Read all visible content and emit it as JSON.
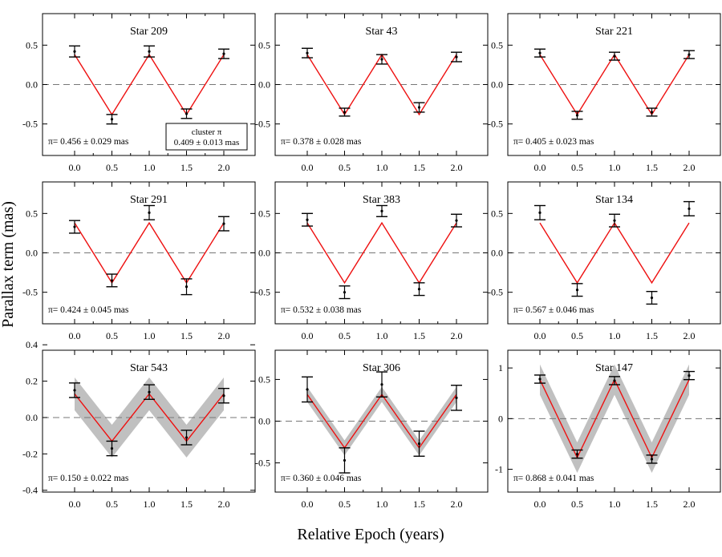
{
  "figure": {
    "ylabel": "Parallax term (mas)",
    "xlabel": "Relative Epoch (years)",
    "xticks": [
      "0.0",
      "0.5",
      "1.0",
      "1.5",
      "2.0"
    ]
  },
  "colors": {
    "model": "#ee1111",
    "band": "#c0c0c0",
    "zero_line": "#777777",
    "axes": "#000000"
  },
  "chart_data": [
    {
      "type": "scatter",
      "title": "Star 209",
      "ylim": [
        -0.9,
        0.9
      ],
      "yticks": [
        "0.5",
        "0.0",
        "-0.5"
      ],
      "ytick_values": [
        0.5,
        0,
        -0.5
      ],
      "amplitude": 0.38,
      "band_halfwidth": 0,
      "parallax_label": "π= 0.456 ±  0.029 mas",
      "cluster_label": [
        "cluster π",
        "0.409 ± 0.013 mas"
      ],
      "points": [
        {
          "x": 0,
          "y": 0.42,
          "err": 0.07
        },
        {
          "x": 0.5,
          "y": -0.44,
          "err": 0.06
        },
        {
          "x": 1,
          "y": 0.42,
          "err": 0.07
        },
        {
          "x": 1.5,
          "y": -0.37,
          "err": 0.06
        },
        {
          "x": 2,
          "y": 0.39,
          "err": 0.06
        }
      ]
    },
    {
      "type": "scatter",
      "title": "Star 43",
      "ylim": [
        -0.9,
        0.9
      ],
      "yticks": [
        "0.5",
        "0.0",
        "-0.5"
      ],
      "ytick_values": [
        0.5,
        0,
        -0.5
      ],
      "amplitude": 0.38,
      "band_halfwidth": 0,
      "parallax_label": "π= 0.378 ±  0.028 mas",
      "points": [
        {
          "x": 0,
          "y": 0.4,
          "err": 0.06
        },
        {
          "x": 0.5,
          "y": -0.35,
          "err": 0.05
        },
        {
          "x": 1,
          "y": 0.32,
          "err": 0.06
        },
        {
          "x": 1.5,
          "y": -0.29,
          "err": 0.06
        },
        {
          "x": 2,
          "y": 0.35,
          "err": 0.06
        }
      ]
    },
    {
      "type": "scatter",
      "title": "Star 221",
      "ylim": [
        -0.9,
        0.9
      ],
      "yticks": [
        "0.5",
        "0.0",
        "-0.5"
      ],
      "ytick_values": [
        0.5,
        0,
        -0.5
      ],
      "amplitude": 0.38,
      "band_halfwidth": 0,
      "parallax_label": "π= 0.405 ±  0.023 mas",
      "points": [
        {
          "x": 0,
          "y": 0.4,
          "err": 0.05
        },
        {
          "x": 0.5,
          "y": -0.39,
          "err": 0.05
        },
        {
          "x": 1,
          "y": 0.36,
          "err": 0.05
        },
        {
          "x": 1.5,
          "y": -0.35,
          "err": 0.05
        },
        {
          "x": 2,
          "y": 0.38,
          "err": 0.05
        }
      ]
    },
    {
      "type": "scatter",
      "title": "Star 291",
      "ylim": [
        -0.9,
        0.9
      ],
      "yticks": [
        "0.5",
        "0.0",
        "-0.5"
      ],
      "ytick_values": [
        0.5,
        0,
        -0.5
      ],
      "amplitude": 0.38,
      "band_halfwidth": 0,
      "parallax_label": "π= 0.424 ±  0.045 mas",
      "points": [
        {
          "x": 0,
          "y": 0.33,
          "err": 0.08
        },
        {
          "x": 0.5,
          "y": -0.35,
          "err": 0.08
        },
        {
          "x": 1,
          "y": 0.51,
          "err": 0.09
        },
        {
          "x": 1.5,
          "y": -0.43,
          "err": 0.1
        },
        {
          "x": 2,
          "y": 0.37,
          "err": 0.09
        }
      ]
    },
    {
      "type": "scatter",
      "title": "Star 383",
      "ylim": [
        -0.9,
        0.9
      ],
      "yticks": [
        "0.5",
        "0.0",
        "-0.5"
      ],
      "ytick_values": [
        0.5,
        0,
        -0.5
      ],
      "amplitude": 0.38,
      "band_halfwidth": 0,
      "parallax_label": "π= 0.532 ±  0.038 mas",
      "points": [
        {
          "x": 0,
          "y": 0.42,
          "err": 0.08
        },
        {
          "x": 0.5,
          "y": -0.5,
          "err": 0.08
        },
        {
          "x": 1,
          "y": 0.53,
          "err": 0.07
        },
        {
          "x": 1.5,
          "y": -0.46,
          "err": 0.08
        },
        {
          "x": 2,
          "y": 0.41,
          "err": 0.08
        }
      ]
    },
    {
      "type": "scatter",
      "title": "Star 134",
      "ylim": [
        -0.9,
        0.9
      ],
      "yticks": [
        "0.5",
        "0.0",
        "-0.5"
      ],
      "ytick_values": [
        0.5,
        0,
        -0.5
      ],
      "amplitude": 0.38,
      "band_halfwidth": 0,
      "parallax_label": "π= 0.567 ±  0.046 mas",
      "points": [
        {
          "x": 0,
          "y": 0.51,
          "err": 0.09
        },
        {
          "x": 0.5,
          "y": -0.47,
          "err": 0.08
        },
        {
          "x": 1,
          "y": 0.41,
          "err": 0.08
        },
        {
          "x": 1.5,
          "y": -0.57,
          "err": 0.08
        },
        {
          "x": 2,
          "y": 0.56,
          "err": 0.09
        }
      ]
    },
    {
      "type": "scatter",
      "title": "Star 543",
      "ylim": [
        -0.41,
        0.37
      ],
      "yticks": [
        "0.4",
        "0.2",
        "0.0",
        "-0.2",
        "-0.4"
      ],
      "ytick_values": [
        0.4,
        0.2,
        0,
        -0.2,
        -0.4
      ],
      "amplitude": 0.13,
      "band_halfwidth": 0.09,
      "parallax_label": "π= 0.150 ±  0.022 mas",
      "points": [
        {
          "x": 0,
          "y": 0.15,
          "err": 0.04
        },
        {
          "x": 0.5,
          "y": -0.17,
          "err": 0.04
        },
        {
          "x": 1,
          "y": 0.14,
          "err": 0.04
        },
        {
          "x": 1.5,
          "y": -0.11,
          "err": 0.04
        },
        {
          "x": 2,
          "y": 0.12,
          "err": 0.04
        }
      ]
    },
    {
      "type": "scatter",
      "title": "Star 306",
      "ylim": [
        -0.85,
        0.85
      ],
      "yticks": [
        "0.5",
        "0.0",
        "-0.5"
      ],
      "ytick_values": [
        0.5,
        0,
        -0.5
      ],
      "amplitude": 0.32,
      "band_halfwidth": 0.09,
      "parallax_label": "π= 0.360 ±  0.046 mas",
      "points": [
        {
          "x": 0,
          "y": 0.38,
          "err": 0.15
        },
        {
          "x": 0.5,
          "y": -0.47,
          "err": 0.15
        },
        {
          "x": 1,
          "y": 0.44,
          "err": 0.15
        },
        {
          "x": 1.5,
          "y": -0.27,
          "err": 0.15
        },
        {
          "x": 2,
          "y": 0.28,
          "err": 0.15
        }
      ]
    },
    {
      "type": "scatter",
      "title": "Star 147",
      "ylim": [
        -1.45,
        1.35
      ],
      "yticks": [
        "1",
        "0",
        "-1"
      ],
      "ytick_values": [
        1,
        0,
        -1
      ],
      "amplitude": 0.77,
      "band_halfwidth": 0.3,
      "parallax_label": "π= 0.868 ±  0.041 mas",
      "points": [
        {
          "x": 0,
          "y": 0.78,
          "err": 0.08
        },
        {
          "x": 0.5,
          "y": -0.7,
          "err": 0.08
        },
        {
          "x": 1,
          "y": 0.75,
          "err": 0.08
        },
        {
          "x": 1.5,
          "y": -0.8,
          "err": 0.08
        },
        {
          "x": 2,
          "y": 0.85,
          "err": 0.08
        }
      ]
    }
  ]
}
